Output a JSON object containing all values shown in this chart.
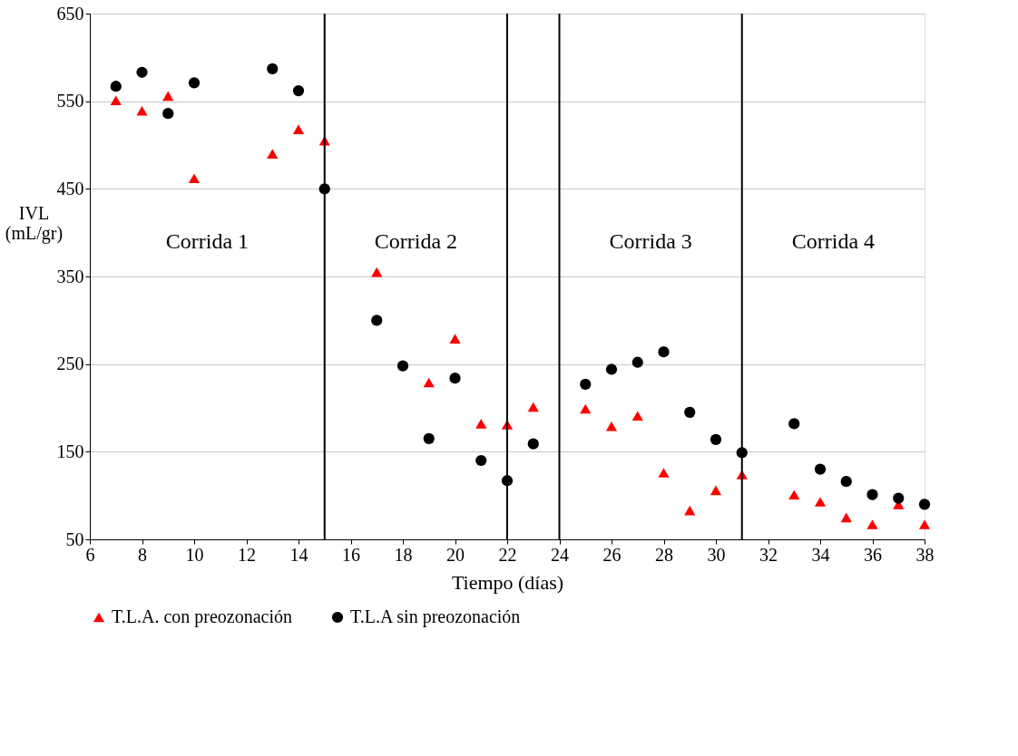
{
  "chart_data": {
    "type": "scatter",
    "xlabel": "Tiempo (días)",
    "ylabel": "IVL\n(mL/gr)",
    "xlim": [
      6,
      38
    ],
    "xticks": [
      6,
      8,
      10,
      12,
      14,
      16,
      18,
      20,
      22,
      24,
      26,
      28,
      30,
      32,
      34,
      36,
      38
    ],
    "ylim": [
      50,
      650
    ],
    "yticks": [
      50,
      150,
      250,
      350,
      450,
      550,
      650
    ],
    "grid": "y",
    "legend": "bottom",
    "series": [
      {
        "name": "T.L.A. con preozonación",
        "color": "#ff0000",
        "marker": "triangle",
        "x": [
          7,
          8,
          9,
          10,
          13,
          14,
          15,
          17,
          19,
          20,
          21,
          22,
          23,
          25,
          26,
          27,
          28,
          29,
          30,
          31,
          33,
          34,
          35,
          36,
          37,
          38
        ],
        "values": [
          551,
          539,
          556,
          462,
          490,
          518,
          505,
          355,
          229,
          279,
          182,
          181,
          201,
          199,
          179,
          191,
          126,
          83,
          106,
          124,
          101,
          93,
          75,
          67,
          90,
          67
        ]
      },
      {
        "name": "T.L.A sin preozonación",
        "color": "#000000",
        "marker": "circle",
        "x": [
          7,
          8,
          9,
          10,
          13,
          14,
          15,
          17,
          18,
          19,
          20,
          21,
          22,
          23,
          25,
          26,
          27,
          28,
          29,
          30,
          31,
          33,
          34,
          35,
          36,
          37,
          38
        ],
        "values": [
          567,
          583,
          536,
          571,
          587,
          562,
          450,
          300,
          248,
          165,
          234,
          140,
          117,
          159,
          227,
          244,
          252,
          264,
          195,
          164,
          149,
          182,
          130,
          116,
          101,
          97,
          90
        ]
      }
    ],
    "ref_lines": [
      {
        "axis": "x",
        "value": 15
      },
      {
        "axis": "x",
        "value": 22
      },
      {
        "axis": "x",
        "value": 24
      },
      {
        "axis": "x",
        "value": 31
      }
    ],
    "annotations": [
      "Corrida 1",
      "Corrida 2",
      "Corrida 3",
      "Corrida 4"
    ]
  }
}
